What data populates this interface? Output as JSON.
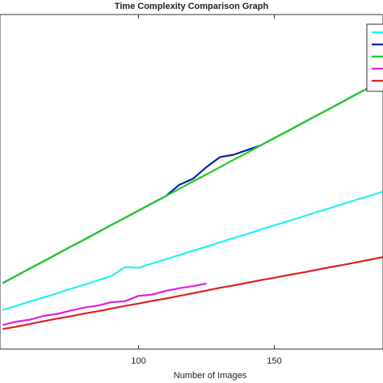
{
  "chart_data": {
    "type": "line",
    "title": "Time Complexity Comparison Graph",
    "xlabel": "Number of Images",
    "xlim": [
      49,
      190
    ],
    "xticks": [
      100,
      150
    ],
    "ylim": [
      0,
      100
    ],
    "legend": "upper right",
    "x": [
      50,
      55,
      60,
      65,
      70,
      75,
      80,
      85,
      90,
      95,
      100,
      105,
      110,
      115,
      120,
      125,
      130,
      135,
      140,
      145,
      150,
      155,
      160,
      165,
      170,
      175,
      180,
      185,
      190
    ],
    "series": [
      {
        "color": "#22f0f0",
        "values": [
          11.7,
          12.9,
          14.2,
          15.4,
          16.7,
          18.0,
          19.2,
          20.5,
          21.8,
          24.5,
          24.3,
          25.6,
          26.8,
          28.1,
          29.4,
          30.6,
          31.9,
          33.2,
          34.4,
          35.7,
          37.0,
          38.2,
          39.5,
          40.8,
          42.0,
          43.3,
          44.6,
          45.8,
          47.1
        ]
      },
      {
        "color": "#0a1fa8",
        "values": [
          19.7,
          21.9,
          24.1,
          26.2,
          28.4,
          30.6,
          32.7,
          34.9,
          37.1,
          39.2,
          41.4,
          43.6,
          45.7,
          49.1,
          50.9,
          54.4,
          57.4,
          58.1,
          59.5,
          60.9,
          63.1,
          65.2,
          67.4,
          69.6,
          71.7,
          73.9,
          76.1,
          78.2,
          80.4
        ]
      },
      {
        "color": "#22cc22",
        "values": [
          19.7,
          21.9,
          24.1,
          26.2,
          28.4,
          30.6,
          32.7,
          34.9,
          37.1,
          39.2,
          41.4,
          43.6,
          45.7,
          47.9,
          50.1,
          52.2,
          54.4,
          56.6,
          58.7,
          60.9,
          63.1,
          65.2,
          67.4,
          69.6,
          71.7,
          73.9,
          76.1,
          78.2,
          80.4
        ]
      },
      {
        "color": "#e020e0",
        "values": [
          7.2,
          8.2,
          8.8,
          9.9,
          10.5,
          11.5,
          12.4,
          13.0,
          14.0,
          14.3,
          15.9,
          16.3,
          17.4,
          18.2,
          18.8,
          19.6,
          null,
          null,
          null,
          null,
          null,
          null,
          null,
          null,
          null,
          null,
          null,
          null,
          null
        ]
      },
      {
        "color": "#dd2020",
        "values": [
          6.0,
          6.7,
          7.5,
          8.3,
          9.1,
          9.8,
          10.6,
          11.3,
          12.1,
          12.9,
          13.6,
          14.4,
          15.1,
          15.9,
          16.7,
          17.5,
          18.3,
          19.0,
          19.8,
          20.6,
          21.3,
          22.1,
          22.8,
          23.6,
          24.4,
          25.1,
          25.9,
          26.7,
          27.5
        ]
      }
    ]
  }
}
